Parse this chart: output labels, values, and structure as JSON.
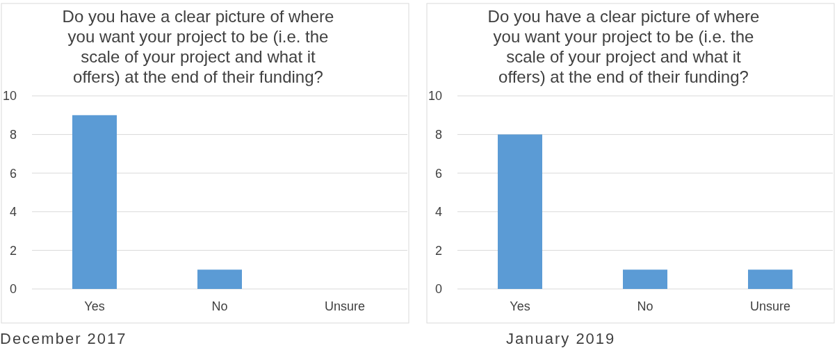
{
  "chart_data": [
    {
      "type": "bar",
      "title": "Do you have a clear picture of where you want your project to be (i.e. the scale of your project and what it offers) at the end of their funding?",
      "categories": [
        "Yes",
        "No",
        "Unsure"
      ],
      "values": [
        9,
        1,
        0
      ],
      "color": "#5b9bd5",
      "ylim": [
        0,
        10
      ],
      "yticks": [
        0,
        2,
        4,
        6,
        8,
        10
      ],
      "grid": "y",
      "annotations": [
        "December 2017"
      ]
    },
    {
      "type": "bar",
      "title": "Do you have a clear picture of where you want your project to be (i.e. the scale of your project and what it offers) at the end of their funding?",
      "categories": [
        "Yes",
        "No",
        "Unsure"
      ],
      "values": [
        8,
        1,
        1
      ],
      "color": "#5b9bd5",
      "ylim": [
        0,
        10
      ],
      "yticks": [
        0,
        2,
        4,
        6,
        8,
        10
      ],
      "grid": "y",
      "annotations": [
        "January 2019"
      ]
    }
  ]
}
